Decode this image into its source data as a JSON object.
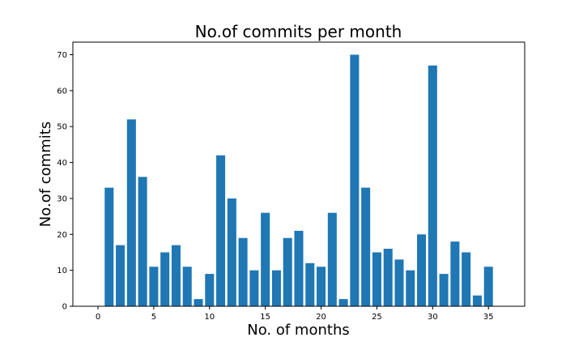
{
  "chart_data": {
    "type": "bar",
    "title": "No.of commits per month",
    "xlabel": "No. of months",
    "ylabel": "No.of commits",
    "x": [
      1,
      2,
      3,
      4,
      5,
      6,
      7,
      8,
      9,
      10,
      11,
      12,
      13,
      14,
      15,
      16,
      17,
      18,
      19,
      20,
      21,
      22,
      23,
      24,
      25,
      26,
      27,
      28,
      29,
      30,
      31,
      32,
      33,
      34,
      35
    ],
    "values": [
      33,
      17,
      52,
      36,
      11,
      15,
      17,
      11,
      2,
      9,
      42,
      30,
      19,
      10,
      26,
      10,
      19,
      21,
      12,
      11,
      26,
      2,
      70,
      33,
      15,
      16,
      13,
      10,
      20,
      67,
      9,
      18,
      15,
      3,
      11
    ],
    "xlim": [
      -2.25,
      38.25
    ],
    "ylim": [
      0,
      73.5
    ],
    "xticks": [
      0,
      5,
      10,
      15,
      20,
      25,
      30,
      35
    ],
    "yticks": [
      0,
      10,
      20,
      30,
      40,
      50,
      60,
      70
    ],
    "bar_color": "#1f77b4",
    "grid": false
  }
}
